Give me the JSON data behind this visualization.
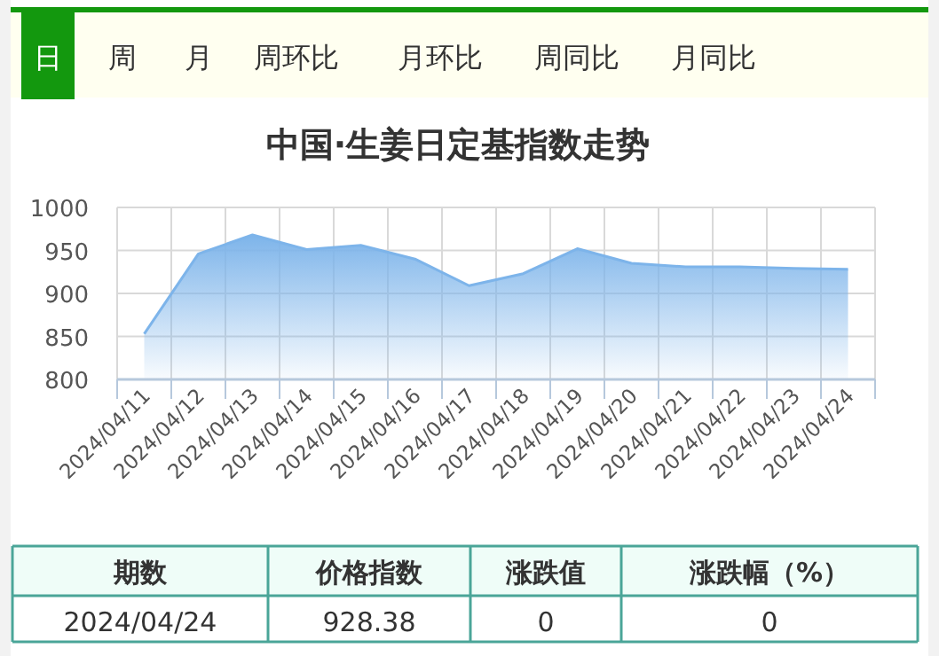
{
  "chart_data": {
    "type": "area",
    "title": "中国·生姜日定基指数走势",
    "categories": [
      "2024/04/11",
      "2024/04/12",
      "2024/04/13",
      "2024/04/14",
      "2024/04/15",
      "2024/04/16",
      "2024/04/17",
      "2024/04/18",
      "2024/04/19",
      "2024/04/20",
      "2024/04/21",
      "2024/04/22",
      "2024/04/23",
      "2024/04/24"
    ],
    "series": [
      {
        "color": "#7db4ea",
        "values": [
          853,
          946,
          968,
          951,
          956,
          940,
          909,
          923,
          952,
          935,
          931,
          931,
          929,
          928
        ]
      }
    ],
    "ylim": [
      800,
      1000
    ],
    "yticks": [
      800,
      850,
      900,
      950,
      1000
    ],
    "grid": true,
    "annotations": [
      "日",
      "周",
      "月",
      "周环比",
      "月环比",
      "周同比",
      "月同比",
      "期数",
      "价格指数",
      "涨跌值",
      "涨跌幅（%）",
      "2024/04/24",
      "928.38",
      "0",
      "0"
    ]
  }
}
